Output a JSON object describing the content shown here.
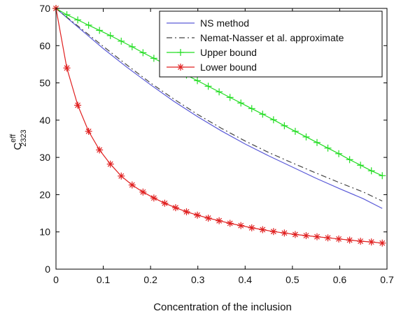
{
  "chart_data": {
    "type": "line",
    "xlabel": "Concentration of the inclusion",
    "ylabel_main": "C",
    "ylabel_sup": "eff",
    "ylabel_sub": "2323",
    "xlim": [
      0,
      0.7
    ],
    "ylim": [
      0,
      70
    ],
    "xticks": [
      "0",
      "0.1",
      "0.2",
      "0.3",
      "0.4",
      "0.5",
      "0.6",
      "0.7"
    ],
    "yticks": [
      "0",
      "10",
      "20",
      "30",
      "40",
      "50",
      "60",
      "70"
    ],
    "grid": false,
    "legend_position": "top-right",
    "series": [
      {
        "name": "NS method",
        "color": "#5a5ad8",
        "style": "solid",
        "marker": "none",
        "points": [
          [
            0,
            70
          ],
          [
            0.05,
            64.6
          ],
          [
            0.1,
            59.2
          ],
          [
            0.15,
            54.2
          ],
          [
            0.2,
            49.5
          ],
          [
            0.25,
            45.0
          ],
          [
            0.3,
            40.9
          ],
          [
            0.35,
            37.1
          ],
          [
            0.4,
            33.6
          ],
          [
            0.45,
            30.4
          ],
          [
            0.5,
            27.4
          ],
          [
            0.55,
            24.4
          ],
          [
            0.6,
            21.6
          ],
          [
            0.65,
            18.9
          ],
          [
            0.69,
            16.3
          ]
        ]
      },
      {
        "name": "Nemat-Nasser et al. approximate",
        "color": "#444444",
        "style": "dashdot",
        "marker": "none",
        "points": [
          [
            0,
            70
          ],
          [
            0.05,
            64.9
          ],
          [
            0.1,
            59.8
          ],
          [
            0.15,
            54.8
          ],
          [
            0.2,
            50.0
          ],
          [
            0.25,
            45.6
          ],
          [
            0.3,
            41.5
          ],
          [
            0.35,
            37.8
          ],
          [
            0.4,
            34.4
          ],
          [
            0.45,
            31.3
          ],
          [
            0.5,
            28.5
          ],
          [
            0.55,
            25.8
          ],
          [
            0.6,
            23.2
          ],
          [
            0.65,
            20.7
          ],
          [
            0.69,
            18.3
          ]
        ]
      },
      {
        "name": "Upper bound",
        "color": "#22dd22",
        "style": "solid",
        "marker": "plus",
        "points": [
          [
            0,
            70
          ],
          [
            0.023,
            68.3
          ],
          [
            0.046,
            66.9
          ],
          [
            0.069,
            65.5
          ],
          [
            0.092,
            64.1
          ],
          [
            0.115,
            62.7
          ],
          [
            0.138,
            61.2
          ],
          [
            0.161,
            59.7
          ],
          [
            0.184,
            58.1
          ],
          [
            0.207,
            56.6
          ],
          [
            0.23,
            55.1
          ],
          [
            0.253,
            53.6
          ],
          [
            0.276,
            52.1
          ],
          [
            0.299,
            50.6
          ],
          [
            0.322,
            49.1
          ],
          [
            0.345,
            47.6
          ],
          [
            0.368,
            46.1
          ],
          [
            0.391,
            44.6
          ],
          [
            0.414,
            43.1
          ],
          [
            0.437,
            41.6
          ],
          [
            0.46,
            40.1
          ],
          [
            0.483,
            38.5
          ],
          [
            0.506,
            37.0
          ],
          [
            0.529,
            35.5
          ],
          [
            0.552,
            34.0
          ],
          [
            0.575,
            32.5
          ],
          [
            0.598,
            31.0
          ],
          [
            0.621,
            29.4
          ],
          [
            0.644,
            27.9
          ],
          [
            0.667,
            26.4
          ],
          [
            0.69,
            25.1
          ]
        ]
      },
      {
        "name": "Lower bound",
        "color": "#e02020",
        "style": "solid",
        "marker": "star",
        "points": [
          [
            0,
            70
          ],
          [
            0.023,
            54
          ],
          [
            0.046,
            44
          ],
          [
            0.069,
            37
          ],
          [
            0.092,
            32
          ],
          [
            0.115,
            28.2
          ],
          [
            0.138,
            25.0
          ],
          [
            0.161,
            22.6
          ],
          [
            0.184,
            20.7
          ],
          [
            0.207,
            19.1
          ],
          [
            0.23,
            17.7
          ],
          [
            0.253,
            16.5
          ],
          [
            0.276,
            15.4
          ],
          [
            0.299,
            14.5
          ],
          [
            0.322,
            13.7
          ],
          [
            0.345,
            13.0
          ],
          [
            0.368,
            12.3
          ],
          [
            0.391,
            11.7
          ],
          [
            0.414,
            11.1
          ],
          [
            0.437,
            10.6
          ],
          [
            0.46,
            10.1
          ],
          [
            0.483,
            9.7
          ],
          [
            0.506,
            9.3
          ],
          [
            0.529,
            9.0
          ],
          [
            0.552,
            8.7
          ],
          [
            0.575,
            8.4
          ],
          [
            0.598,
            8.1
          ],
          [
            0.621,
            7.8
          ],
          [
            0.644,
            7.5
          ],
          [
            0.667,
            7.3
          ],
          [
            0.69,
            7.0
          ]
        ]
      }
    ]
  }
}
